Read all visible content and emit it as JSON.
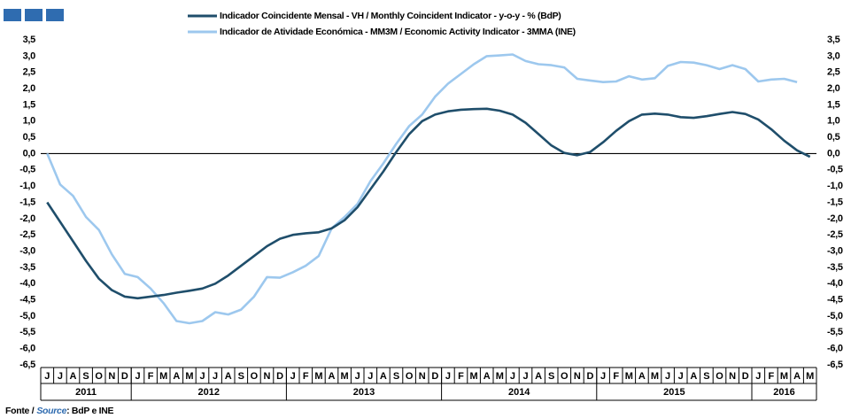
{
  "chart_data": {
    "type": "line",
    "series": [
      {
        "name": "Indicador Coincidente Mensal - VH / Monthly Coincident Indicator - y-o-y - % (BdP)",
        "color": "#1f4e6b",
        "values": [
          -1.5,
          -2.1,
          -2.7,
          -3.3,
          -3.85,
          -4.2,
          -4.4,
          -4.45,
          -4.4,
          -4.35,
          -4.28,
          -4.22,
          -4.15,
          -4.0,
          -3.75,
          -3.45,
          -3.15,
          -2.85,
          -2.62,
          -2.5,
          -2.45,
          -2.42,
          -2.3,
          -2.05,
          -1.65,
          -1.1,
          -0.55,
          0.05,
          0.6,
          1.0,
          1.2,
          1.3,
          1.35,
          1.37,
          1.38,
          1.32,
          1.2,
          0.95,
          0.6,
          0.25,
          0.02,
          -0.05,
          0.05,
          0.35,
          0.7,
          1.0,
          1.2,
          1.23,
          1.2,
          1.12,
          1.1,
          1.15,
          1.22,
          1.28,
          1.22,
          1.05,
          0.75,
          0.4,
          0.1,
          -0.1
        ]
      },
      {
        "name": "Indicador de Atividade Económica - MM3M / Economic Activity Indicator - 3MMA (INE)",
        "color": "#9dc8ee",
        "values": [
          0.0,
          -0.95,
          -1.3,
          -1.95,
          -2.35,
          -3.1,
          -3.7,
          -3.8,
          -4.15,
          -4.6,
          -5.15,
          -5.22,
          -5.15,
          -4.88,
          -4.95,
          -4.8,
          -4.4,
          -3.8,
          -3.82,
          -3.65,
          -3.45,
          -3.15,
          -2.3,
          -1.95,
          -1.55,
          -0.85,
          -0.3,
          0.3,
          0.85,
          1.2,
          1.75,
          2.15,
          2.45,
          2.75,
          3.0,
          3.02,
          3.05,
          2.85,
          2.75,
          2.72,
          2.65,
          2.3,
          2.25,
          2.2,
          2.22,
          2.38,
          2.28,
          2.32,
          2.7,
          2.82,
          2.8,
          2.72,
          2.6,
          2.72,
          2.6,
          2.22,
          2.28,
          2.3,
          2.2,
          null
        ]
      }
    ],
    "categories": [
      "J",
      "J",
      "A",
      "S",
      "O",
      "N",
      "D",
      "J",
      "F",
      "M",
      "A",
      "M",
      "J",
      "J",
      "A",
      "S",
      "O",
      "N",
      "D",
      "J",
      "F",
      "M",
      "A",
      "M",
      "J",
      "J",
      "A",
      "S",
      "O",
      "N",
      "D",
      "J",
      "F",
      "M",
      "A",
      "M",
      "J",
      "J",
      "A",
      "S",
      "O",
      "N",
      "D",
      "J",
      "F",
      "M",
      "A",
      "M",
      "J",
      "J",
      "A",
      "S",
      "O",
      "N",
      "D",
      "J",
      "F",
      "M",
      "A",
      "M"
    ],
    "years": [
      "2011",
      "2012",
      "2013",
      "2014",
      "2015",
      "2016"
    ],
    "ylim": [
      -6.5,
      3.5
    ],
    "yticks": [
      {
        "value": 3.5,
        "label": "3,5"
      },
      {
        "value": 3.0,
        "label": "3,0"
      },
      {
        "value": 2.5,
        "label": "2,5"
      },
      {
        "value": 2.0,
        "label": "2,0"
      },
      {
        "value": 1.5,
        "label": "1,5"
      },
      {
        "value": 1.0,
        "label": "1,0"
      },
      {
        "value": 0.5,
        "label": "0,5"
      },
      {
        "value": 0,
        "label": "0,0"
      },
      {
        "value": -0.5,
        "label": "-0,5"
      },
      {
        "value": -1.0,
        "label": "-1,0"
      },
      {
        "value": -1.5,
        "label": "-1,5"
      },
      {
        "value": -2.0,
        "label": "-2,0"
      },
      {
        "value": -2.5,
        "label": "-2,5"
      },
      {
        "value": -3.0,
        "label": "-3,0"
      },
      {
        "value": -3.5,
        "label": "-3,5"
      },
      {
        "value": -4.0,
        "label": "-4,0"
      },
      {
        "value": -4.5,
        "label": "-4,5"
      },
      {
        "value": -5.0,
        "label": "-5,0"
      },
      {
        "value": -5.5,
        "label": "-5,5"
      },
      {
        "value": -6.0,
        "label": "-6,0"
      },
      {
        "value": -6.5,
        "label": "-6,5"
      }
    ],
    "grid": false,
    "source_prefix": "Fonte /",
    "source_en": "Source",
    "source_text": ": BdP e INE"
  }
}
